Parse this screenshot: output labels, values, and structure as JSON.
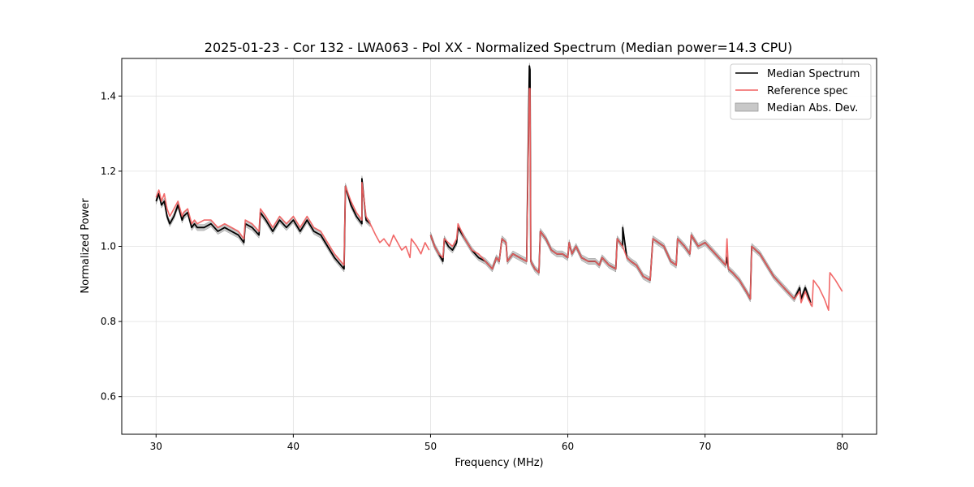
{
  "chart_data": {
    "type": "line",
    "title": "2025-01-23 - Cor 132 - LWA063 - Pol XX - Normalized Spectrum (Median power=14.3 CPU)",
    "xlabel": "Frequency (MHz)",
    "ylabel": "Normalized Power",
    "xlim": [
      27.5,
      82.5
    ],
    "ylim": [
      0.5,
      1.5
    ],
    "xticks": [
      30,
      40,
      50,
      60,
      70,
      80
    ],
    "yticks": [
      0.6,
      0.8,
      1.0,
      1.2,
      1.4
    ],
    "xtick_labels": [
      "30",
      "40",
      "50",
      "60",
      "70",
      "80"
    ],
    "ytick_labels": [
      "0.6",
      "0.8",
      "1.0",
      "1.2",
      "1.4"
    ],
    "grid": true,
    "legend_position": "top-right",
    "colors": {
      "median": "#000000",
      "reference": "#f06060",
      "mad_fill": "#c8c8c8",
      "mad_edge": "#9a9a9a",
      "grid": "#e0e0e0"
    },
    "legend": [
      {
        "label": "Median Spectrum",
        "kind": "line",
        "series": "median"
      },
      {
        "label": "Reference spec",
        "kind": "line",
        "series": "reference"
      },
      {
        "label": "Median Abs. Dev.",
        "kind": "patch",
        "series": "mad"
      }
    ],
    "series": [
      {
        "name": "Reference spec",
        "key": "reference",
        "segments": [
          {
            "x": [
              30.0,
              30.2,
              30.4,
              30.6,
              30.8,
              31.0,
              31.3,
              31.6,
              31.9,
              32.0,
              32.3,
              32.6,
              32.8,
              33.0,
              33.5,
              34.0,
              34.5,
              35.0,
              35.5,
              36.0,
              36.4,
              36.5,
              37.0,
              37.5,
              37.6,
              38.0,
              38.5,
              39.0,
              39.5,
              40.0,
              40.5,
              41.0,
              41.5,
              42.0,
              42.5,
              43.0,
              43.7,
              43.8,
              44.2,
              44.6,
              45.0,
              45.0,
              45.3,
              45.6,
              46.0,
              46.3,
              46.6,
              47.0,
              47.3,
              47.6,
              47.9,
              48.2,
              48.5,
              48.6,
              49.0,
              49.3,
              49.6,
              49.9
            ],
            "y": [
              1.13,
              1.15,
              1.12,
              1.14,
              1.1,
              1.08,
              1.1,
              1.12,
              1.08,
              1.09,
              1.1,
              1.06,
              1.07,
              1.06,
              1.07,
              1.07,
              1.05,
              1.06,
              1.05,
              1.04,
              1.02,
              1.07,
              1.06,
              1.04,
              1.1,
              1.08,
              1.05,
              1.08,
              1.06,
              1.08,
              1.05,
              1.08,
              1.05,
              1.04,
              1.01,
              0.98,
              0.95,
              1.16,
              1.12,
              1.09,
              1.07,
              1.17,
              1.08,
              1.06,
              1.03,
              1.01,
              1.02,
              1.0,
              1.03,
              1.01,
              0.99,
              1.0,
              0.97,
              1.02,
              1.0,
              0.98,
              1.01,
              0.99
            ]
          },
          {
            "x": [
              50.0,
              50.3,
              50.6,
              50.9,
              51.0,
              51.3,
              51.6,
              51.9,
              52.0,
              52.5,
              53.0,
              53.5,
              54.0,
              54.5,
              54.8,
              55.0,
              55.2,
              55.5,
              55.6,
              56.0,
              56.5,
              57.0,
              57.2,
              57.25,
              57.3,
              57.6,
              57.9,
              58.0,
              58.4,
              58.8,
              59.2,
              59.6,
              60.0,
              60.1,
              60.3,
              60.6,
              61.0,
              61.5,
              62.0,
              62.3,
              62.5,
              63.0,
              63.5,
              63.6,
              64.0,
              64.3,
              64.6,
              65.0,
              65.5,
              66.0,
              66.2,
              66.6,
              67.0,
              67.5,
              67.9,
              68.0,
              68.5,
              68.9,
              69.0,
              69.5,
              70.0,
              70.5,
              71.0,
              71.5,
              71.6,
              71.7,
              72.0,
              72.5,
              73.0,
              73.3,
              73.4,
              74.0,
              74.5,
              75.0,
              75.5,
              76.0,
              76.5,
              76.9,
              77.0,
              77.3,
              77.5,
              77.8,
              77.9,
              78.3,
              78.7,
              79.0,
              79.1,
              79.5,
              80.0
            ],
            "y": [
              1.03,
              1.0,
              0.98,
              0.97,
              1.02,
              1.01,
              1.0,
              1.02,
              1.06,
              1.02,
              0.99,
              0.98,
              0.96,
              0.94,
              0.97,
              0.96,
              1.02,
              1.01,
              0.96,
              0.98,
              0.97,
              0.96,
              1.42,
              1.42,
              0.96,
              0.94,
              0.93,
              1.04,
              1.02,
              0.99,
              0.98,
              0.98,
              0.97,
              1.01,
              0.98,
              1.0,
              0.97,
              0.96,
              0.96,
              0.95,
              0.97,
              0.95,
              0.94,
              1.02,
              1.0,
              0.97,
              0.96,
              0.95,
              0.92,
              0.91,
              1.02,
              1.01,
              1.0,
              0.96,
              0.95,
              1.02,
              1.0,
              0.98,
              1.03,
              1.0,
              1.01,
              0.99,
              0.97,
              0.95,
              1.02,
              0.94,
              0.93,
              0.91,
              0.88,
              0.86,
              1.0,
              0.98,
              0.95,
              0.92,
              0.9,
              0.88,
              0.86,
              0.88,
              0.85,
              0.88,
              0.86,
              0.84,
              0.91,
              0.89,
              0.86,
              0.83,
              0.93,
              0.91,
              0.88
            ]
          }
        ]
      },
      {
        "name": "Median Spectrum",
        "key": "median",
        "segments": [
          {
            "x": [
              30.0,
              30.2,
              30.4,
              30.6,
              30.8,
              31.0,
              31.3,
              31.6,
              31.9,
              32.0,
              32.3,
              32.6,
              32.8,
              33.0,
              33.5,
              34.0,
              34.5,
              35.0,
              35.5,
              36.0,
              36.4,
              36.5,
              37.0,
              37.5,
              37.6,
              38.0,
              38.5,
              39.0,
              39.5,
              40.0,
              40.5,
              41.0,
              41.5,
              42.0,
              42.5,
              43.0,
              43.7,
              43.8,
              44.2,
              44.6,
              45.0,
              45.0,
              45.3,
              45.6
            ],
            "y": [
              1.12,
              1.14,
              1.11,
              1.12,
              1.08,
              1.06,
              1.08,
              1.11,
              1.07,
              1.08,
              1.09,
              1.05,
              1.06,
              1.05,
              1.05,
              1.06,
              1.04,
              1.05,
              1.04,
              1.03,
              1.01,
              1.06,
              1.05,
              1.03,
              1.09,
              1.07,
              1.04,
              1.07,
              1.05,
              1.07,
              1.04,
              1.07,
              1.04,
              1.03,
              1.0,
              0.97,
              0.94,
              1.16,
              1.11,
              1.08,
              1.06,
              1.18,
              1.07,
              1.06
            ]
          },
          {
            "x": [
              50.0,
              50.3,
              50.6,
              50.9,
              51.0,
              51.3,
              51.6,
              51.9,
              52.0,
              52.5,
              53.0,
              53.5,
              54.0,
              54.5,
              54.8,
              55.0,
              55.2,
              55.5,
              55.6,
              56.0,
              56.5,
              57.0,
              57.2,
              57.25,
              57.3,
              57.6,
              57.9,
              58.0,
              58.4,
              58.8,
              59.2,
              59.6,
              60.0,
              60.1,
              60.3,
              60.6,
              61.0,
              61.5,
              62.0,
              62.3,
              62.5,
              63.0,
              63.5,
              63.6,
              64.0,
              64.0,
              64.3,
              64.6,
              65.0,
              65.5,
              66.0,
              66.2,
              66.6,
              67.0,
              67.5,
              67.9,
              68.0,
              68.5,
              68.9,
              69.0,
              69.5,
              70.0,
              70.5,
              71.0,
              71.5,
              71.6,
              71.7,
              72.0,
              72.5,
              73.0,
              73.3,
              73.4,
              74.0,
              74.5,
              75.0,
              75.5,
              76.0,
              76.5,
              76.9,
              77.0,
              77.3,
              77.5,
              77.7
            ],
            "y": [
              1.03,
              1.0,
              0.98,
              0.96,
              1.02,
              1.0,
              0.99,
              1.01,
              1.05,
              1.02,
              0.99,
              0.97,
              0.96,
              0.94,
              0.97,
              0.96,
              1.02,
              1.01,
              0.96,
              0.98,
              0.97,
              0.96,
              1.48,
              1.47,
              0.96,
              0.94,
              0.93,
              1.04,
              1.02,
              0.99,
              0.98,
              0.98,
              0.97,
              1.01,
              0.98,
              1.0,
              0.97,
              0.96,
              0.96,
              0.95,
              0.97,
              0.95,
              0.94,
              1.02,
              1.0,
              1.05,
              0.97,
              0.96,
              0.95,
              0.92,
              0.91,
              1.02,
              1.01,
              1.0,
              0.96,
              0.95,
              1.02,
              1.0,
              0.98,
              1.03,
              1.0,
              1.01,
              0.99,
              0.97,
              0.95,
              0.97,
              0.94,
              0.93,
              0.91,
              0.88,
              0.86,
              1.0,
              0.98,
              0.95,
              0.92,
              0.9,
              0.88,
              0.86,
              0.89,
              0.86,
              0.89,
              0.87,
              0.85
            ]
          }
        ]
      },
      {
        "name": "Median Abs. Dev.",
        "key": "mad",
        "half_width": 0.008
      }
    ]
  }
}
